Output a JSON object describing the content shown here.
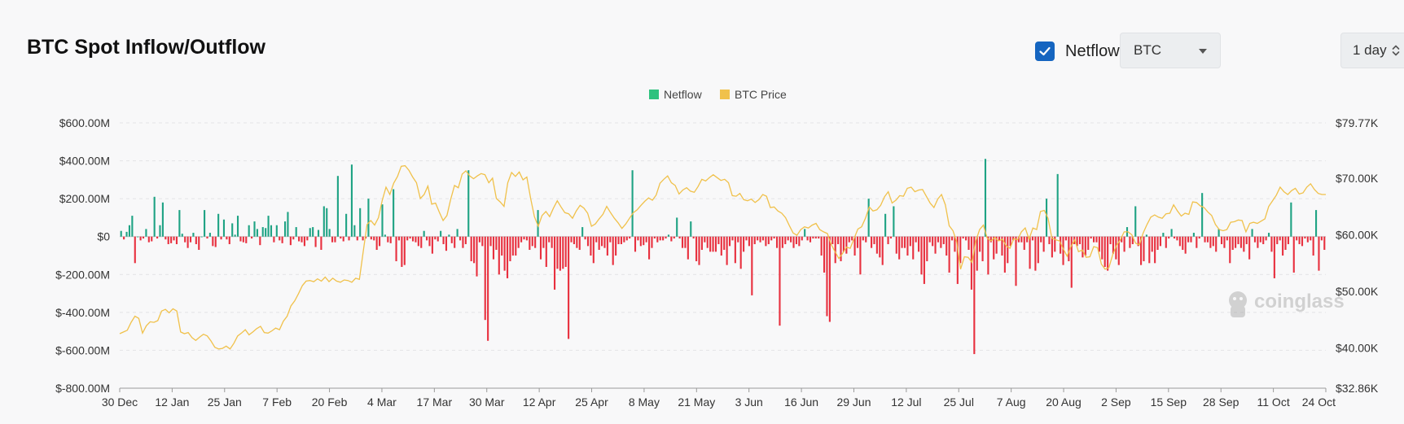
{
  "header": {
    "title": "BTC Spot Inflow/Outflow",
    "netflow_toggle": {
      "label": "Netflow",
      "checked": true
    },
    "asset_select": {
      "value": "BTC"
    },
    "interval_select": {
      "value": "1 day"
    }
  },
  "watermark": "coinglass",
  "colors": {
    "netflow_positive": "#1fa384",
    "netflow_negative": "#e8303f",
    "price_line": "#f0c14b",
    "legend_netflow": "#2ec27e",
    "legend_price": "#f0c14b"
  },
  "chart_data": {
    "type": "bar",
    "legend": [
      "Netflow",
      "BTC Price"
    ],
    "grid": true,
    "legend_position": "top-center",
    "x_ticks": [
      "30 Dec",
      "12 Jan",
      "25 Jan",
      "7 Feb",
      "20 Feb",
      "4 Mar",
      "17 Mar",
      "30 Mar",
      "12 Apr",
      "25 Apr",
      "8 May",
      "21 May",
      "3 Jun",
      "16 Jun",
      "29 Jun",
      "12 Jul",
      "25 Jul",
      "7 Aug",
      "20 Aug",
      "2 Sep",
      "15 Sep",
      "28 Sep",
      "11 Oct",
      "24 Oct"
    ],
    "y_left": {
      "ticks": [
        "$600.00M",
        "$400.00M",
        "$200.00M",
        "$0",
        "$-200.00M",
        "$-400.00M",
        "$-600.00M",
        "$-800.00M"
      ],
      "tick_values": [
        600,
        400,
        200,
        0,
        -200,
        -400,
        -600,
        -800
      ],
      "range": [
        -800,
        600
      ],
      "unit": "$M"
    },
    "y_right": {
      "ticks": [
        "$79.77K",
        "$70.00K",
        "$60.00K",
        "$50.00K",
        "$40.00K",
        "$32.86K"
      ],
      "tick_values": [
        79.77,
        70,
        60,
        50,
        40,
        32.86
      ],
      "range": [
        32.86,
        79.77
      ],
      "unit": "$K"
    },
    "series": [
      {
        "name": "Netflow",
        "type": "bar",
        "values": [
          30,
          -15,
          25,
          60,
          110,
          -140,
          0,
          -20,
          -10,
          40,
          -30,
          -25,
          210,
          -10,
          60,
          180,
          -15,
          -40,
          -35,
          -20,
          -40,
          140,
          15,
          -30,
          -60,
          -30,
          20,
          -40,
          -70,
          0,
          140,
          -10,
          20,
          -50,
          -55,
          120,
          -15,
          90,
          -15,
          -40,
          70,
          10,
          110,
          -25,
          -30,
          -35,
          60,
          -10,
          80,
          40,
          -45,
          50,
          45,
          110,
          60,
          -30,
          60,
          -20,
          -35,
          80,
          130,
          -45,
          -15,
          50,
          -25,
          -30,
          -50,
          -20,
          45,
          50,
          -55,
          35,
          -70,
          160,
          150,
          40,
          -30,
          -30,
          320,
          -10,
          -25,
          120,
          -20,
          380,
          60,
          -20,
          150,
          -20,
          -10,
          200,
          -15,
          -20,
          -70,
          -50,
          170,
          10,
          -30,
          -35,
          250,
          -130,
          -20,
          -160,
          -150,
          -20,
          -10,
          -25,
          -30,
          -50,
          -60,
          30,
          -20,
          -50,
          -90,
          -15,
          -25,
          30,
          -40,
          -75,
          10,
          -35,
          -60,
          40,
          -20,
          -60,
          -40,
          350,
          -130,
          -140,
          -210,
          -30,
          -50,
          -440,
          -550,
          -50,
          -120,
          -70,
          -200,
          -100,
          -180,
          -220,
          -130,
          -100,
          -100,
          -60,
          -30,
          -15,
          -20,
          -70,
          -50,
          -60,
          140,
          -120,
          -60,
          -160,
          -30,
          -60,
          -280,
          -170,
          -180,
          -170,
          -160,
          -540,
          -30,
          -40,
          -60,
          -70,
          50,
          -15,
          -50,
          -100,
          -140,
          -30,
          -70,
          -50,
          -60,
          -100,
          -30,
          -150,
          -100,
          -40,
          -40,
          -30,
          -20,
          -10,
          350,
          -80,
          -20,
          -50,
          -45,
          -30,
          -120,
          -60,
          -10,
          -30,
          -20,
          -20,
          -10,
          10,
          -25,
          -10,
          100,
          -10,
          -60,
          -60,
          -120,
          80,
          -10,
          -130,
          -150,
          -70,
          -30,
          -60,
          -80,
          -80,
          -80,
          -40,
          -100,
          -70,
          -150,
          -50,
          -20,
          -140,
          -30,
          -170,
          -80,
          -20,
          -50,
          -310,
          -40,
          -20,
          -30,
          -20,
          -50,
          -40,
          -20,
          -10,
          -60,
          -470,
          -60,
          -40,
          -20,
          -30,
          -60,
          -40,
          -50,
          -20,
          40,
          -20,
          -30,
          -10,
          -10,
          -10,
          -100,
          -190,
          -420,
          -450,
          -40,
          -140,
          -40,
          -130,
          -80,
          -90,
          -30,
          -20,
          -100,
          -60,
          -200,
          -20,
          -30,
          200,
          -60,
          -40,
          -90,
          -110,
          -150,
          120,
          -40,
          -10,
          160,
          -90,
          -120,
          -60,
          -60,
          -100,
          -50,
          -120,
          -30,
          -80,
          -200,
          -250,
          -130,
          -30,
          -50,
          -90,
          -30,
          -60,
          -40,
          -100,
          -190,
          -20,
          -80,
          -250,
          -140,
          -10,
          -20,
          -70,
          -280,
          -620,
          -180,
          -80,
          -130,
          410,
          -200,
          -30,
          -120,
          -90,
          -20,
          -100,
          -190,
          -140,
          -50,
          -20,
          -260,
          -30,
          -30,
          -70,
          -30,
          -170,
          -20,
          -180,
          -140,
          -30,
          -80,
          200,
          -40,
          -110,
          -80,
          330,
          -90,
          -150,
          -20,
          -130,
          -270,
          -40,
          -50,
          -40,
          -110,
          -100,
          -70,
          -10,
          -30,
          -30,
          -80,
          -120,
          -160,
          -180,
          -40,
          -90,
          -120,
          -150,
          -30,
          -80,
          50,
          -60,
          -40,
          160,
          -50,
          -150,
          -130,
          10,
          -140,
          -80,
          -140,
          -70,
          -50,
          20,
          -60,
          -10,
          40,
          -10,
          -20,
          -50,
          -70,
          -90,
          -30,
          -30,
          20,
          -60,
          -10,
          230,
          -30,
          -30,
          -60,
          -50,
          -80,
          40,
          -40,
          -60,
          -20,
          -140,
          -70,
          -60,
          -40,
          -60,
          -80,
          -40,
          -120,
          40,
          -30,
          -60,
          -30,
          -40,
          -20,
          20,
          -80,
          -220,
          -40,
          -20,
          -100,
          -70,
          -40,
          180,
          -190,
          -20,
          -40,
          -50,
          -10,
          -30,
          -20,
          -100,
          140,
          -180,
          -20,
          -70
        ],
        "note": "daily values 30 Dec to 24 Oct, $M"
      },
      {
        "name": "BTC Price",
        "type": "line",
        "values": [
          42.5,
          42.8,
          43.1,
          44.5,
          45.6,
          45.2,
          42.6,
          43.9,
          44.6,
          44.5,
          44.8,
          46.5,
          46.8,
          46.2,
          46.9,
          46.5,
          42.8,
          42.5,
          42.7,
          41.8,
          41.3,
          41.9,
          42.4,
          42.1,
          41.2,
          40.1,
          39.8,
          39.9,
          40.3,
          39.8,
          40.8,
          42.1,
          42.6,
          43.2,
          42.3,
          42.8,
          43.4,
          43.8,
          42.7,
          42.6,
          43.0,
          43.5,
          43.2,
          44.7,
          45.6,
          47.4,
          48.3,
          49.6,
          51.0,
          51.8,
          51.9,
          51.7,
          52.2,
          51.8,
          52.5,
          51.7,
          52.3,
          51.8,
          51.6,
          52.0,
          51.9,
          51.6,
          52.3,
          52.1,
          57.0,
          61.8,
          62.5,
          61.7,
          63.0,
          66.1,
          68.4,
          67.1,
          69.1,
          70.3,
          72.1,
          72.2,
          71.4,
          70.2,
          69.2,
          66.4,
          67.1,
          68.6,
          65.4,
          65.6,
          64.0,
          62.5,
          63.4,
          66.3,
          68.7,
          68.3,
          70.7,
          71.3,
          70.4,
          69.9,
          70.4,
          70.8,
          70.6,
          69.2,
          70.0,
          66.4,
          65.8,
          65.0,
          69.2,
          71.0,
          70.3,
          71.1,
          69.7,
          70.2,
          66.4,
          63.2,
          61.5,
          63.4,
          64.1,
          63.2,
          64.7,
          66.0,
          64.9,
          63.9,
          63.7,
          62.9,
          64.2,
          65.2,
          64.7,
          63.8,
          61.5,
          61.9,
          62.8,
          63.6,
          65.0,
          63.9,
          62.9,
          62.1,
          61.1,
          61.9,
          62.9,
          63.9,
          64.4,
          65.2,
          65.9,
          66.5,
          66.1,
          67.0,
          69.1,
          69.8,
          70.4,
          69.2,
          68.7,
          67.2,
          67.9,
          68.3,
          67.7,
          67.5,
          68.5,
          69.8,
          69.5,
          70.1,
          70.6,
          70.1,
          69.6,
          69.8,
          69.2,
          66.9,
          66.8,
          67.3,
          66.2,
          66.0,
          66.3,
          65.7,
          66.2,
          67.1,
          66.8,
          64.8,
          64.9,
          64.2,
          63.8,
          63.0,
          61.6,
          60.3,
          59.9,
          60.9,
          61.4,
          61.2,
          61.7,
          62.0,
          60.9,
          60.5,
          60.2,
          58.3,
          57.0,
          55.8,
          56.7,
          57.8,
          57.6,
          59.3,
          61.0,
          61.4,
          62.9,
          64.9,
          64.2,
          64.4,
          65.2,
          66.7,
          67.6,
          65.6,
          66.1,
          66.9,
          66.8,
          68.2,
          68.4,
          67.6,
          67.9,
          68.0,
          66.8,
          65.6,
          64.8,
          66.3,
          67.1,
          65.3,
          61.6,
          60.7,
          58.7,
          53.9,
          56.1,
          56.0,
          55.1,
          58.9,
          60.9,
          61.7,
          59.4,
          58.9,
          59.5,
          58.9,
          59.2,
          58.0,
          57.6,
          59.3,
          59.1,
          60.5,
          61.2,
          59.2,
          61.2,
          60.9,
          64.1,
          64.3,
          62.9,
          59.4,
          59.1,
          58.9,
          57.5,
          56.2,
          57.9,
          59.1,
          57.0,
          57.3,
          56.0,
          56.1,
          57.9,
          57.7,
          54.8,
          53.9,
          54.2,
          56.5,
          58.1,
          59.1,
          60.5,
          60.5,
          60.0,
          58.5,
          58.2,
          60.3,
          61.8,
          63.1,
          63.5,
          63.1,
          62.9,
          63.7,
          63.8,
          65.3,
          64.2,
          63.3,
          63.8,
          63.6,
          65.8,
          65.7,
          65.1,
          64.8,
          64.0,
          63.4,
          61.8,
          60.9,
          60.7,
          60.9,
          62.2,
          62.3,
          62.6,
          62.5,
          60.5,
          62.0,
          62.2,
          62.0,
          62.4,
          62.8,
          65.0,
          66.0,
          67.0,
          68.4,
          67.6,
          67.1,
          67.8,
          68.2,
          67.2,
          67.4,
          68.4,
          69.0,
          68.0,
          67.3,
          67.1,
          67.1
        ],
        "note": "daily close, $K"
      }
    ]
  }
}
